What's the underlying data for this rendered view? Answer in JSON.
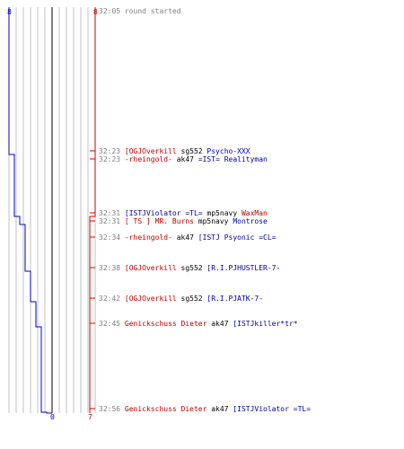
{
  "teams": {
    "left": {
      "name_color": "#0000cc",
      "start_count": "8",
      "end_count": "0"
    },
    "right": {
      "name_color": "#cc0000",
      "start_count": "8",
      "end_count": "7"
    }
  },
  "graph": {
    "grid_columns": 12,
    "colors": {
      "grid": "#c0c0c0",
      "center": "#808080",
      "blue_line": "#0000cc",
      "red_line": "#cc0000"
    },
    "blue_alive_after_event": [
      8,
      7,
      7,
      6,
      5,
      5,
      4,
      3,
      2,
      1,
      0
    ],
    "red_alive_after_event": [
      8,
      8,
      8,
      7,
      7,
      7,
      7,
      7,
      7,
      7,
      7
    ]
  },
  "log": [
    {
      "time": "32:05",
      "row": 0,
      "killer": "round started",
      "killer_team": "gray",
      "weapon": "",
      "victim": "",
      "victim_team": ""
    },
    {
      "time": "32:23",
      "row": 1,
      "killer": "[OGJOverkill",
      "killer_team": "red",
      "weapon": "sg552",
      "victim": "Psycho-XXX",
      "victim_team": "blue"
    },
    {
      "time": "32:23",
      "row": 2,
      "killer": "-rheingold-",
      "killer_team": "red",
      "weapon": "ak47",
      "victim": "=IST= Realityman",
      "victim_team": "blue"
    },
    {
      "time": "32:31",
      "row": 3,
      "killer": "[ISTJViolator  =TL=",
      "killer_team": "blue",
      "weapon": "mp5navy",
      "victim": "WaxMan",
      "victim_team": "red"
    },
    {
      "time": "32:31",
      "row": 4,
      "killer": "[ TS ] MR. Burns",
      "killer_team": "red",
      "weapon": "mp5navy",
      "victim": "Montrose",
      "victim_team": "blue"
    },
    {
      "time": "32:34",
      "row": 5,
      "killer": "-rheingold-",
      "killer_team": "red",
      "weapon": "ak47",
      "victim": "[ISTJ Psyonic =CL=",
      "victim_team": "blue"
    },
    {
      "time": "32:38",
      "row": 6,
      "killer": "[OGJOverkill",
      "killer_team": "red",
      "weapon": "sg552",
      "victim": "[R.I.PJHUSTLER-7-",
      "victim_team": "blue"
    },
    {
      "time": "32:42",
      "row": 7,
      "killer": "[OGJOverkill",
      "killer_team": "red",
      "weapon": "sg552",
      "victim": "[R.I.PJATK-7-",
      "victim_team": "blue"
    },
    {
      "time": "32:45",
      "row": 8,
      "killer": "Genickschuss Dieter",
      "killer_team": "red",
      "weapon": "ak47",
      "victim": "[ISTJkiller*tr*",
      "victim_team": "blue"
    },
    {
      "time": "32:56",
      "row": 9,
      "killer": "Genickschuss Dieter",
      "killer_team": "red",
      "weapon": "ak47",
      "victim": "[ISTJViolator  =TL=",
      "victim_team": "blue"
    }
  ]
}
